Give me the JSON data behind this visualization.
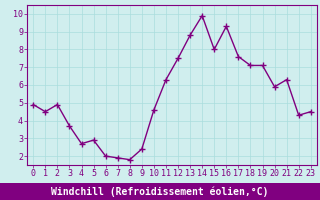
{
  "x": [
    0,
    1,
    2,
    3,
    4,
    5,
    6,
    7,
    8,
    9,
    10,
    11,
    12,
    13,
    14,
    15,
    16,
    17,
    18,
    19,
    20,
    21,
    22,
    23
  ],
  "y": [
    4.9,
    4.5,
    4.9,
    3.7,
    2.7,
    2.9,
    2.0,
    1.9,
    1.8,
    2.4,
    4.6,
    6.3,
    7.5,
    8.8,
    9.9,
    8.0,
    9.3,
    7.6,
    7.1,
    7.1,
    5.9,
    6.3,
    4.3,
    4.5
  ],
  "line_color": "#800080",
  "marker": "+",
  "marker_size": 4,
  "linewidth": 1.0,
  "xlabel": "Windchill (Refroidissement éolien,°C)",
  "xlim": [
    -0.5,
    23.5
  ],
  "ylim": [
    1.5,
    10.5
  ],
  "yticks": [
    2,
    3,
    4,
    5,
    6,
    7,
    8,
    9,
    10
  ],
  "xticks": [
    0,
    1,
    2,
    3,
    4,
    5,
    6,
    7,
    8,
    9,
    10,
    11,
    12,
    13,
    14,
    15,
    16,
    17,
    18,
    19,
    20,
    21,
    22,
    23
  ],
  "grid_color": "#aadddd",
  "bg_color": "#d0eeee",
  "plot_bg": "#d0eeee",
  "purple": "#800080",
  "tick_fontsize": 6,
  "xlabel_fontsize": 7,
  "xlabel_bar_color": "#800080",
  "xlabel_text_color": "#800080",
  "tick_label_color": "#800080"
}
